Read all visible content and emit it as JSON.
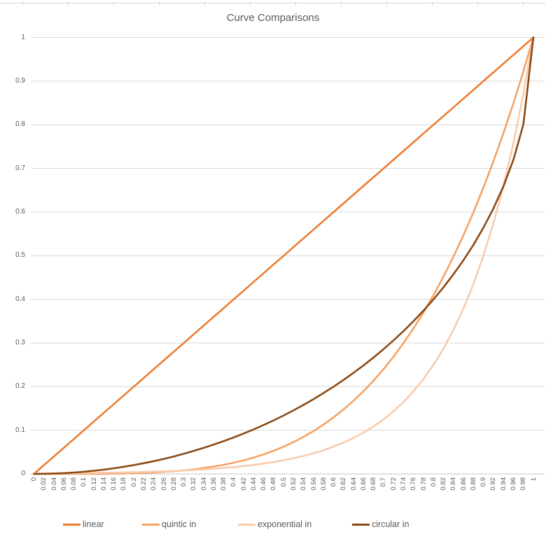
{
  "chart_data": {
    "type": "line",
    "title": "Curve Comparisons",
    "xlabel": "",
    "ylabel": "",
    "xlim": [
      0,
      1
    ],
    "ylim": [
      0,
      1
    ],
    "grid": "horizontal",
    "grid_color": "#D9D9D9",
    "axis_color": "#C6C6C6",
    "text_color": "#595959",
    "legend_position": "bottom",
    "x_label_rotation": 270,
    "y_ticks": [
      "1",
      "0.9",
      "0.8",
      "0.7",
      "0.6",
      "0.5",
      "0.4",
      "0.3",
      "0.2",
      "0.1",
      "0"
    ],
    "categories": [
      "0",
      "0.02",
      "0.04",
      "0.06",
      "0.08",
      "0.1",
      "0.12",
      "0.14",
      "0.16",
      "0.18",
      "0.2",
      "0.22",
      "0.24",
      "0.26",
      "0.28",
      "0.3",
      "0.32",
      "0.34",
      "0.36",
      "0.38",
      "0.4",
      "0.42",
      "0.44",
      "0.46",
      "0.48",
      "0.5",
      "0.52",
      "0.54",
      "0.56",
      "0.58",
      "0.6",
      "0.62",
      "0.64",
      "0.66",
      "0.68",
      "0.7",
      "0.72",
      "0.74",
      "0.76",
      "0.78",
      "0.8",
      "0.82",
      "0.84",
      "0.86",
      "0.88",
      "0.9",
      "0.92",
      "0.94",
      "0.96",
      "0.98",
      "1"
    ],
    "series": [
      {
        "name": "linear",
        "color": "#ED7D31",
        "values": [
          0,
          0.02,
          0.04,
          0.06,
          0.08,
          0.1,
          0.12,
          0.14,
          0.16,
          0.18,
          0.2,
          0.22,
          0.24,
          0.26,
          0.28,
          0.3,
          0.32,
          0.34,
          0.36,
          0.38,
          0.4,
          0.42,
          0.44,
          0.46,
          0.48,
          0.5,
          0.52,
          0.54,
          0.56,
          0.58,
          0.6,
          0.62,
          0.64,
          0.66,
          0.68,
          0.7,
          0.72,
          0.74,
          0.76,
          0.78,
          0.8,
          0.82,
          0.84,
          0.86,
          0.88,
          0.9,
          0.92,
          0.94,
          0.96,
          0.98,
          1
        ]
      },
      {
        "name": "quintic in",
        "color": "#F4A263",
        "values": [
          0,
          0,
          0,
          0,
          0,
          0.0001,
          0.0002,
          0.0004,
          0.0007,
          0.001,
          0.0016,
          0.0023,
          0.0033,
          0.0046,
          0.0061,
          0.0081,
          0.0105,
          0.0134,
          0.0168,
          0.0209,
          0.0256,
          0.0311,
          0.0375,
          0.0448,
          0.0531,
          0.0625,
          0.0731,
          0.085,
          0.0983,
          0.1132,
          0.1296,
          0.1478,
          0.1678,
          0.1897,
          0.2138,
          0.2401,
          0.2687,
          0.2999,
          0.3336,
          0.3702,
          0.4096,
          0.4521,
          0.4979,
          0.547,
          0.5997,
          0.6561,
          0.7164,
          0.7807,
          0.8493,
          0.9224,
          1
        ]
      },
      {
        "name": "exponential in",
        "color": "#F8CBAD",
        "values": [
          0.001,
          0.0011,
          0.0013,
          0.0015,
          0.0017,
          0.002,
          0.0022,
          0.0026,
          0.003,
          0.0034,
          0.0039,
          0.0045,
          0.0052,
          0.0059,
          0.0068,
          0.0078,
          0.009,
          0.0103,
          0.0118,
          0.0136,
          0.0156,
          0.0179,
          0.0206,
          0.0237,
          0.0272,
          0.0313,
          0.0359,
          0.0412,
          0.0473,
          0.0544,
          0.0625,
          0.0718,
          0.0825,
          0.0947,
          0.1088,
          0.125,
          0.1436,
          0.1649,
          0.1895,
          0.2176,
          0.25,
          0.2872,
          0.3299,
          0.379,
          0.4353,
          0.5,
          0.5743,
          0.6598,
          0.7579,
          0.8706,
          1
        ]
      },
      {
        "name": "circular in",
        "color": "#8B4A15",
        "values": [
          0,
          0.0002,
          0.0008,
          0.0018,
          0.0032,
          0.005,
          0.0072,
          0.0098,
          0.0129,
          0.0163,
          0.0202,
          0.0245,
          0.0292,
          0.0344,
          0.04,
          0.0461,
          0.0527,
          0.0597,
          0.0673,
          0.075,
          0.0835,
          0.0925,
          0.102,
          0.1121,
          0.1227,
          0.134,
          0.1458,
          0.1583,
          0.1715,
          0.1854,
          0.2,
          0.2154,
          0.2316,
          0.2487,
          0.2668,
          0.2859,
          0.306,
          0.3274,
          0.3501,
          0.3742,
          0.4,
          0.4276,
          0.4574,
          0.4897,
          0.525,
          0.5641,
          0.6081,
          0.6588,
          0.72,
          0.801,
          1
        ]
      }
    ]
  }
}
